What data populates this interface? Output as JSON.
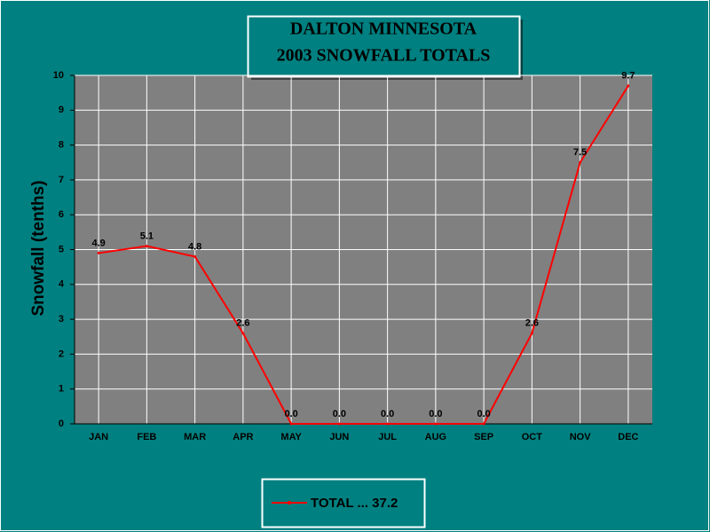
{
  "chart_data": {
    "type": "line",
    "title": [
      "DALTON MINNESOTA",
      "2003 SNOWFALL TOTALS"
    ],
    "y_label": "Snowfall (tenths)",
    "categories": [
      "JAN",
      "FEB",
      "MAR",
      "APR",
      "MAY",
      "JUN",
      "JUL",
      "AUG",
      "SEP",
      "OCT",
      "NOV",
      "DEC"
    ],
    "series": [
      {
        "name": "TOTAL ... 37.2",
        "color": "#ff0000",
        "values": [
          4.9,
          5.1,
          4.8,
          2.6,
          0,
          0,
          0,
          0,
          0,
          2.6,
          7.5,
          9.7
        ],
        "value_labels": [
          "4.9",
          "5.1",
          "4.8",
          "2.6",
          "0.0",
          "0.0",
          "0.0",
          "0.0",
          "0.0",
          "2.6",
          "7.5",
          "9.7"
        ]
      }
    ],
    "ylim": [
      0,
      10
    ],
    "yticks": [
      0,
      1,
      2,
      3,
      4,
      5,
      6,
      7,
      8,
      9,
      10
    ],
    "grid": true
  }
}
